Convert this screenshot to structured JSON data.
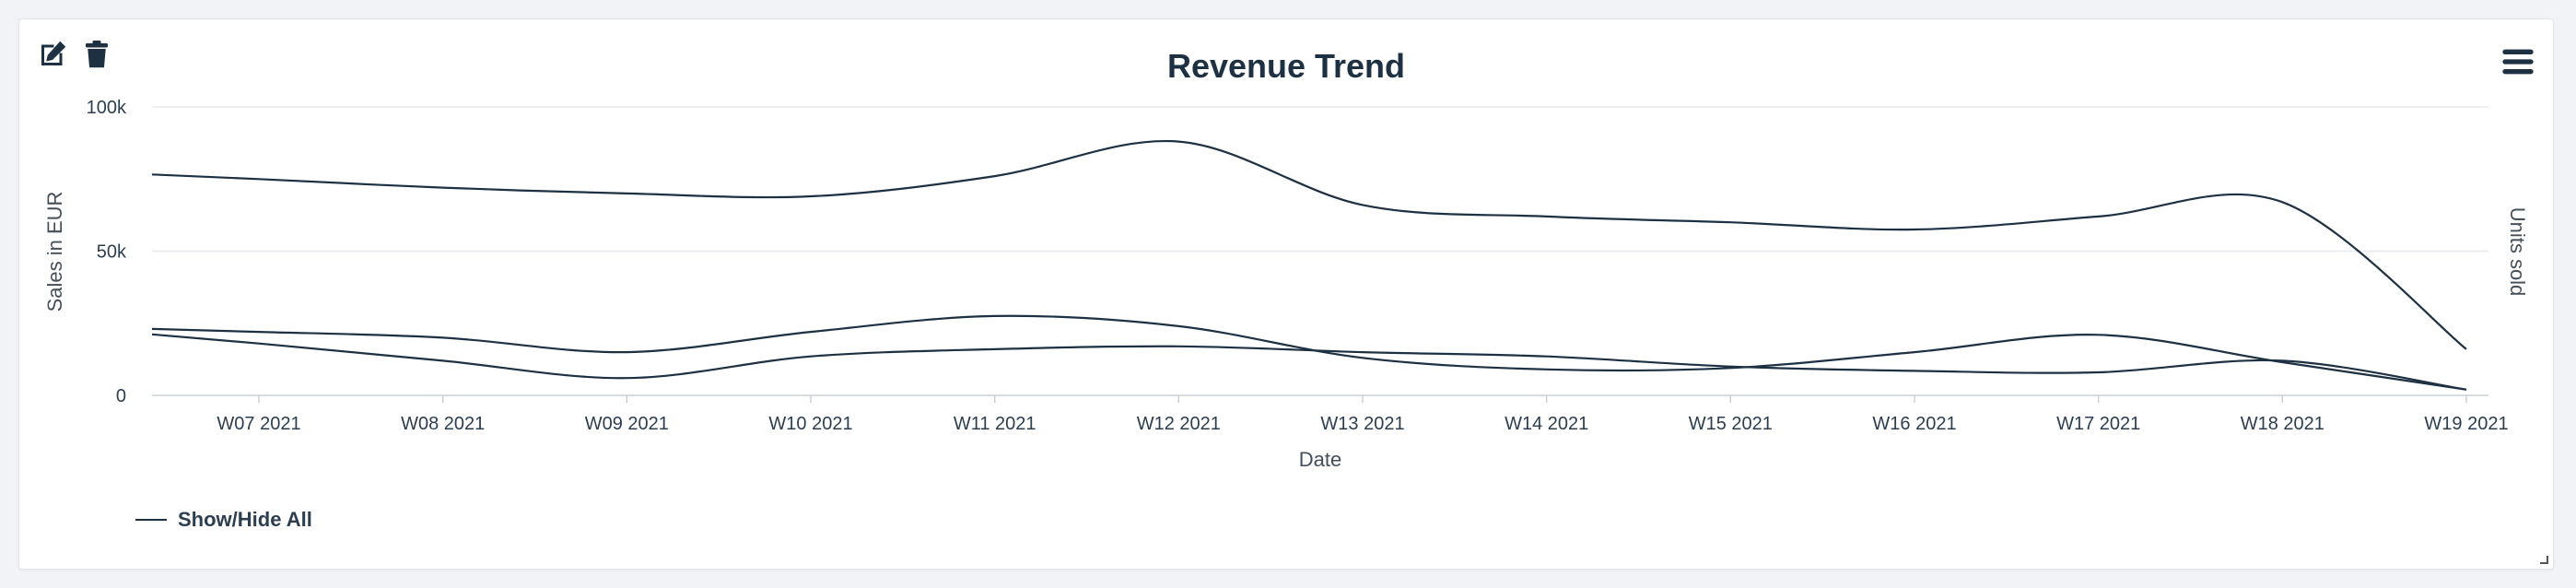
{
  "header": {
    "title": "Revenue Trend"
  },
  "toolbar": {
    "edit_icon": "edit-icon",
    "delete_icon": "trash-icon",
    "menu_icon": "hamburger-menu-icon"
  },
  "legend": {
    "label": "Show/Hide All",
    "color": "#1d3142"
  },
  "chart_data": {
    "type": "line",
    "title": "Revenue Trend",
    "xlabel": "Date",
    "ylabel": "Sales in EUR",
    "y2label": "Units sold",
    "categories": [
      "W07 2021",
      "W08 2021",
      "W09 2021",
      "W10 2021",
      "W11 2021",
      "W12 2021",
      "W13 2021",
      "W14 2021",
      "W15 2021",
      "W16 2021",
      "W17 2021",
      "W18 2021",
      "W19 2021"
    ],
    "yticks": [
      "0",
      "50k",
      "100k"
    ],
    "ylim": [
      0,
      100000
    ],
    "grid": true,
    "legend_position": "bottom-left",
    "line_color": "#1d3142",
    "series": [
      {
        "values": [
          75000,
          72000,
          70000,
          69000,
          76000,
          88000,
          66000,
          62000,
          60000,
          57500,
          62000,
          67000,
          16000
        ]
      },
      {
        "values": [
          22000,
          20000,
          15000,
          22000,
          27500,
          24000,
          13000,
          9000,
          9500,
          15000,
          21000,
          11500,
          2000
        ]
      },
      {
        "values": [
          18000,
          12000,
          6000,
          13500,
          16000,
          17000,
          15000,
          13500,
          10000,
          8500,
          8000,
          12000,
          2000
        ]
      }
    ]
  }
}
